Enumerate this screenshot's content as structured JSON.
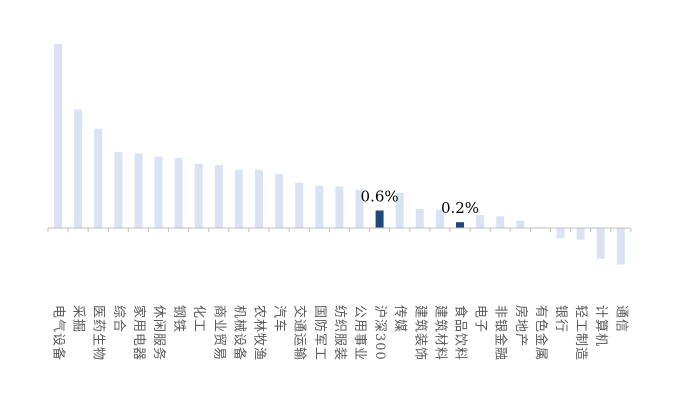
{
  "chart_data": {
    "type": "bar",
    "title": "",
    "xlabel": "",
    "ylabel": "",
    "ylim": [
      -1.3,
      6.5
    ],
    "grid": false,
    "legend": "none",
    "categories": [
      "电气设备",
      "采掘",
      "医药生物",
      "综合",
      "家用电器",
      "休闲服务",
      "钢铁",
      "化工",
      "商业贸易",
      "机械设备",
      "农林牧渔",
      "汽车",
      "交通运输",
      "国防军工",
      "纺织服装",
      "公用事业",
      "沪深300",
      "传媒",
      "建筑装饰",
      "建筑材料",
      "食品饮料",
      "电子",
      "非银金融",
      "房地产",
      "有色金属",
      "银行",
      "轻工制造",
      "计算机",
      "通信"
    ],
    "values": [
      6.3,
      4.05,
      3.4,
      2.6,
      2.55,
      2.45,
      2.4,
      2.2,
      2.15,
      2.0,
      2.0,
      1.85,
      1.55,
      1.45,
      1.42,
      1.3,
      0.6,
      1.2,
      0.65,
      0.62,
      0.2,
      0.45,
      0.4,
      0.25,
      0.03,
      -0.35,
      -0.4,
      -1.05,
      -1.25
    ],
    "highlight_indices": [
      16,
      20
    ],
    "data_labels": [
      {
        "index": 16,
        "text": "0.6%"
      },
      {
        "index": 20,
        "text": "0.2%"
      }
    ],
    "colors": {
      "bar": "#dae3f3",
      "highlight": "#1f497d",
      "axis": "#bfbfbf",
      "label": "#595959"
    }
  }
}
